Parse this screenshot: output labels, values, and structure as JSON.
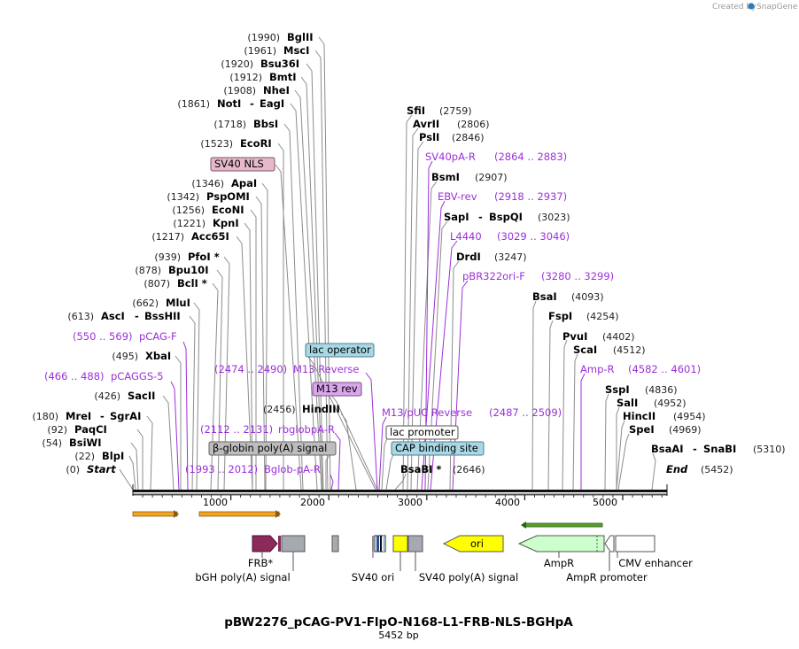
{
  "credit": {
    "text": "Created by",
    "brand": "SnapGene"
  },
  "title": "pBW2276_pCAG-PV1-FlpO-N168-L1-FRB-NLS-BGHpA",
  "subtitle": "5452 bp",
  "start_label": "Start",
  "start_pos": "(0)",
  "end_label": "End",
  "end_pos": "(5452)",
  "total_bp": 5452,
  "ticks": [
    "1000",
    "2000",
    "3000",
    "4000",
    "5000"
  ],
  "left_labels": [
    {
      "pos": "(1990)",
      "name": "BglII"
    },
    {
      "pos": "(1961)",
      "name": "MscI"
    },
    {
      "pos": "(1920)",
      "name": "Bsu36I"
    },
    {
      "pos": "(1912)",
      "name": "BmtI"
    },
    {
      "pos": "(1908)",
      "name": "NheI"
    },
    {
      "pos": "(1861)",
      "name": "NotI",
      "name2": "EagI"
    },
    {
      "pos": "(1718)",
      "name": "BbsI"
    },
    {
      "pos": "(1523)",
      "name": "EcoRI"
    },
    {
      "pos": "(1346)",
      "name": "ApaI"
    },
    {
      "pos": "(1342)",
      "name": "PspOMI"
    },
    {
      "pos": "(1256)",
      "name": "EcoNI"
    },
    {
      "pos": "(1221)",
      "name": "KpnI"
    },
    {
      "pos": "(1217)",
      "name": "Acc65I"
    },
    {
      "pos": "(939)",
      "name": "PfoI *"
    },
    {
      "pos": "(878)",
      "name": "Bpu10I"
    },
    {
      "pos": "(807)",
      "name": "BclI *"
    },
    {
      "pos": "(662)",
      "name": "MluI"
    },
    {
      "pos": "(613)",
      "name": "AscI",
      "name2": "BssHII"
    },
    {
      "pos": "(495)",
      "name": "XbaI"
    },
    {
      "pos": "(426)",
      "name": "SacII"
    },
    {
      "pos": "(180)",
      "name": "MreI",
      "name2": "SgrAI"
    },
    {
      "pos": "(92)",
      "name": "PaqCI"
    },
    {
      "pos": "(54)",
      "name": "BsiWI"
    },
    {
      "pos": "(22)",
      "name": "BlpI"
    }
  ],
  "mid_right_labels": [
    {
      "name": "SfiI",
      "pos": "(2759)"
    },
    {
      "name": "AvrII",
      "pos": "(2806)"
    },
    {
      "name": "PslI",
      "pos": "(2846)"
    },
    {
      "name": "BsmI",
      "pos": "(2907)"
    },
    {
      "name": "SapI",
      "name2": "BspQI",
      "pos": "(3023)"
    },
    {
      "name": "DrdI",
      "pos": "(3247)"
    },
    {
      "name": "BsaI",
      "pos": "(4093)"
    },
    {
      "name": "FspI",
      "pos": "(4254)"
    },
    {
      "name": "PvuI",
      "pos": "(4402)"
    },
    {
      "name": "ScaI",
      "pos": "(4512)"
    },
    {
      "name": "SspI",
      "pos": "(4836)"
    },
    {
      "name": "SalI",
      "pos": "(4952)"
    },
    {
      "name": "HincII",
      "pos": "(4954)"
    },
    {
      "name": "SpeI",
      "pos": "(4969)"
    },
    {
      "name": "BsaAI",
      "name2": "SnaBI",
      "pos": "(5310)"
    },
    {
      "name": "BsaBI *",
      "pos": "(2646)"
    },
    {
      "name": "HindIII",
      "pos": "(2456)"
    }
  ],
  "primers": [
    {
      "name": "pCAG-F",
      "range": "(550 .. 569)"
    },
    {
      "name": "pCAGGS-5",
      "range": "(466 .. 488)"
    },
    {
      "name": "M13 Reverse",
      "range": "(2474 .. 2490)"
    },
    {
      "name": "rbglobpA-R",
      "range": "(2112 .. 2131)"
    },
    {
      "name": "Bglob-pA-R",
      "range": "(1993 .. 2012)"
    },
    {
      "name": "SV40pA-R",
      "range": "(2864 .. 2883)"
    },
    {
      "name": "EBV-rev",
      "range": "(2918 .. 2937)"
    },
    {
      "name": "L4440",
      "range": "(3029 .. 3046)"
    },
    {
      "name": "pBR322ori-F",
      "range": "(3280 .. 3299)"
    },
    {
      "name": "Amp-R",
      "range": "(4582 .. 4601)"
    },
    {
      "name": "M13/pUC Reverse",
      "range": "(2487 .. 2509)"
    }
  ],
  "boxed_features": [
    {
      "name": "SV40 NLS"
    },
    {
      "name": "lac operator"
    },
    {
      "name": "M13 rev"
    },
    {
      "name": "lac promoter"
    },
    {
      "name": "CAP binding site"
    },
    {
      "name": "β-globin poly(A) signal"
    }
  ],
  "features": [
    {
      "name": "FRB*"
    },
    {
      "name": "bGH poly(A) signal"
    },
    {
      "name": "SV40 ori"
    },
    {
      "name": "SV40 poly(A) signal"
    },
    {
      "name": "ori"
    },
    {
      "name": "AmpR"
    },
    {
      "name": "AmpR promoter"
    },
    {
      "name": "CMV enhancer"
    }
  ],
  "colors": {
    "enzyme": "#000000",
    "primer": "#9b30d9",
    "sv40_nls": "#e6b8cc",
    "lac": "#a8d8e6",
    "m13rev": "#d9a6ea",
    "globin": "#bdbdbd",
    "frb": "#8c2a5a",
    "ori": "#ffff00",
    "ampr": "#ccffcc",
    "grey_feature": "#a6aab0",
    "orf_arrow": "#f4a41e",
    "orf_arrow_green": "#5a9e2a"
  }
}
